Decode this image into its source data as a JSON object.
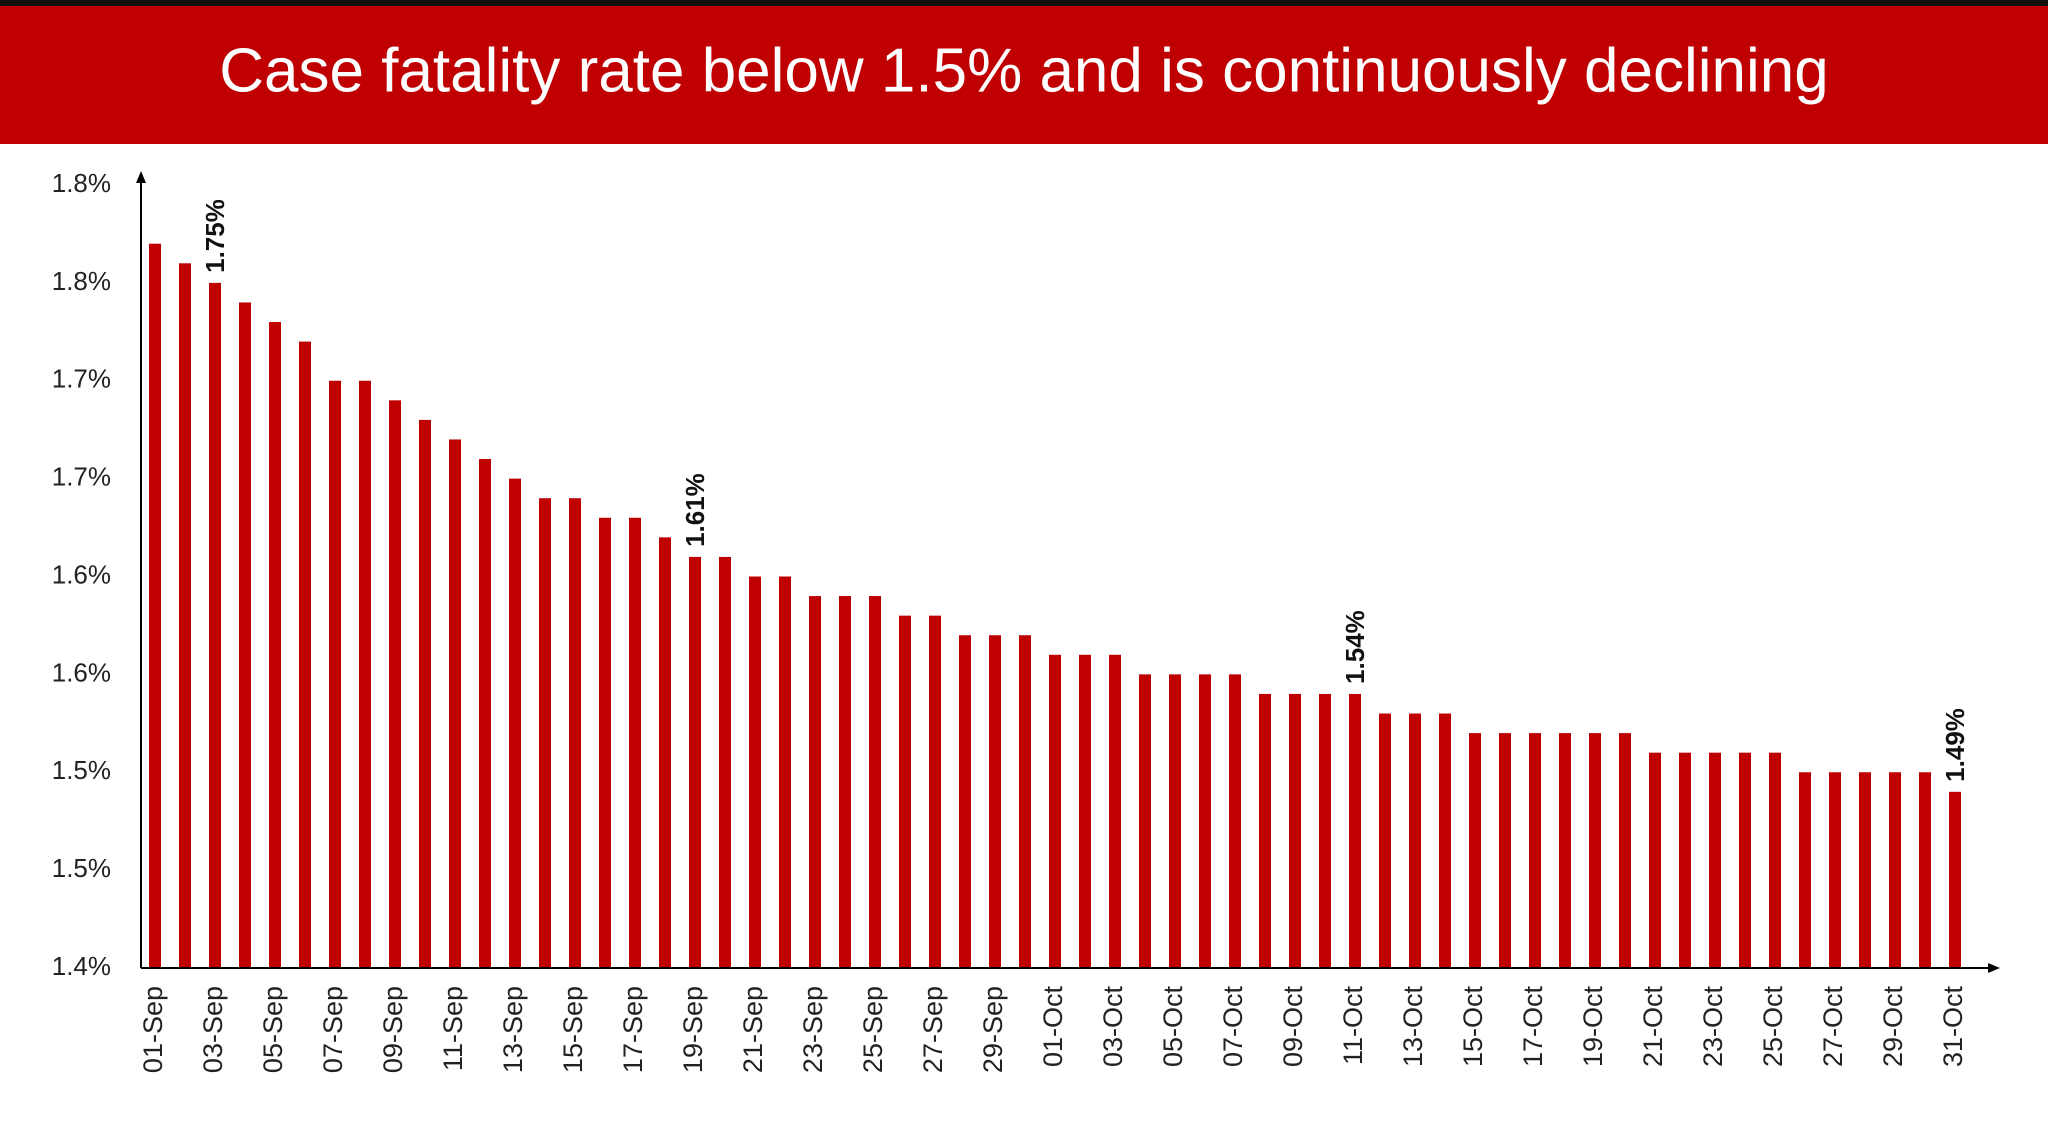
{
  "chart_data": {
    "type": "bar",
    "title": "Case fatality rate below 1.5% and is continuously declining",
    "color": "#c00000",
    "categories": [
      "01-Sep",
      null,
      "03-Sep",
      null,
      "05-Sep",
      null,
      "07-Sep",
      null,
      "09-Sep",
      null,
      "11-Sep",
      null,
      "13-Sep",
      null,
      "15-Sep",
      null,
      "17-Sep",
      null,
      "19-Sep",
      null,
      "21-Sep",
      null,
      "23-Sep",
      null,
      "25-Sep",
      null,
      "27-Sep",
      null,
      "29-Sep",
      null,
      "01-Oct",
      null,
      "03-Oct",
      null,
      "05-Oct",
      null,
      "07-Oct",
      null,
      "09-Oct",
      null,
      "11-Oct",
      null,
      "13-Oct",
      null,
      "15-Oct",
      null,
      "17-Oct",
      null,
      "19-Oct",
      null,
      "21-Oct",
      null,
      "23-Oct",
      null,
      "25-Oct",
      null,
      "27-Oct",
      null,
      "29-Oct",
      null,
      "31-Oct"
    ],
    "values": [
      1.77,
      1.76,
      1.75,
      1.74,
      1.73,
      1.72,
      1.7,
      1.7,
      1.69,
      1.68,
      1.67,
      1.66,
      1.65,
      1.64,
      1.64,
      1.63,
      1.63,
      1.62,
      1.61,
      1.61,
      1.6,
      1.6,
      1.59,
      1.59,
      1.59,
      1.58,
      1.58,
      1.57,
      1.57,
      1.57,
      1.56,
      1.56,
      1.56,
      1.55,
      1.55,
      1.55,
      1.55,
      1.54,
      1.54,
      1.54,
      1.54,
      1.53,
      1.53,
      1.53,
      1.52,
      1.52,
      1.52,
      1.52,
      1.52,
      1.52,
      1.51,
      1.51,
      1.51,
      1.51,
      1.51,
      1.5,
      1.5,
      1.5,
      1.5,
      1.5,
      1.49
    ],
    "value_labels": [
      null,
      null,
      "1.75%",
      null,
      null,
      null,
      null,
      null,
      null,
      null,
      null,
      null,
      null,
      null,
      null,
      null,
      null,
      null,
      "1.61%",
      null,
      null,
      null,
      null,
      null,
      null,
      null,
      null,
      null,
      null,
      null,
      null,
      null,
      null,
      null,
      null,
      null,
      null,
      null,
      null,
      null,
      "1.54%",
      null,
      null,
      null,
      null,
      null,
      null,
      null,
      null,
      null,
      null,
      null,
      null,
      null,
      null,
      null,
      null,
      null,
      null,
      null,
      "1.49%"
    ],
    "ylim": [
      1.4,
      1.8
    ],
    "yticks": [
      {
        "value": 1.4,
        "label": "1.4%"
      },
      {
        "value": 1.45,
        "label": "1.5%"
      },
      {
        "value": 1.5,
        "label": "1.5%"
      },
      {
        "value": 1.55,
        "label": "1.6%"
      },
      {
        "value": 1.6,
        "label": "1.6%"
      },
      {
        "value": 1.65,
        "label": "1.7%"
      },
      {
        "value": 1.7,
        "label": "1.7%"
      },
      {
        "value": 1.75,
        "label": "1.8%"
      },
      {
        "value": 1.8,
        "label": "1.8%"
      }
    ],
    "grid": false
  }
}
